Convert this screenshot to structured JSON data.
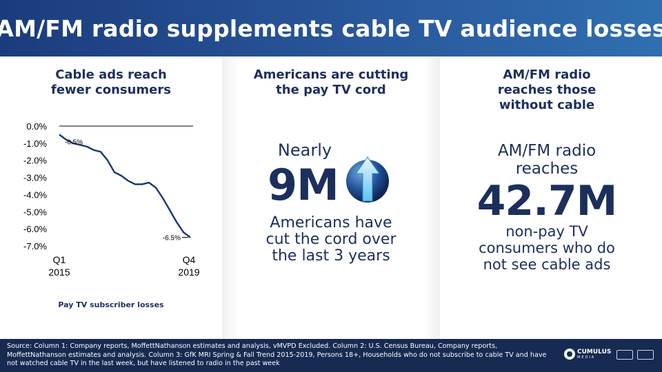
{
  "header": {
    "title": "AM/FM radio supplements cable TV audience losses"
  },
  "column1": {
    "title_line1": "Cable ads reach",
    "title_line2": "fewer consumers",
    "chart_label": "Pay TV subscriber losses"
  },
  "column2": {
    "title_line1": "Americans are cutting",
    "title_line2": "the pay TV cord",
    "nearly": "Nearly",
    "number": "9M",
    "desc_line1": "Americans have",
    "desc_line2": "cut the cord over",
    "desc_line3": "the last 3 years",
    "icon": "up-arrow-icon"
  },
  "column3": {
    "title_line1": "AM/FM radio",
    "title_line2": "reaches those",
    "title_line3": "without cable",
    "lead_line1": "AM/FM radio",
    "lead_line2": "reaches",
    "number": "42.7M",
    "desc_line1": "non-pay TV",
    "desc_line2": "consumers who do",
    "desc_line3": "not see cable ads"
  },
  "footer": {
    "source": "Source: Column 1: Company reports, MoffettNathanson estimates and analysis, vMVPD Excluded. Column 2: U.S. Census Bureau, Company reports, MoffettNathanson estimates and analysis. Column 3: GfK MRI Spring & Fall Trend 2015-2019, Persons 18+, Households who do not subscribe to cable TV and have not watched cable TV in the last week, but have listened to radio in the past week",
    "logo_name": "CUMULUS",
    "logo_sub": "MEDIA"
  },
  "colors": {
    "navy": "#1c2f5c",
    "header_blue": "#2a5a9e",
    "footer_bg": "#162a52"
  },
  "chart_data": {
    "type": "line",
    "title": "Pay TV subscriber losses",
    "y_tick_labels": [
      "0.0%",
      "-1.0%",
      "-2.0%",
      "-3.0%",
      "-4.0%",
      "-5.0%",
      "-6.0%",
      "-7.0%"
    ],
    "y_ticks": [
      0,
      -1,
      -2,
      -3,
      -4,
      -5,
      -6,
      -7
    ],
    "ylim": [
      -7,
      0
    ],
    "x_start_label": [
      "Q1",
      "2015"
    ],
    "x_end_label": [
      "Q4",
      "2019"
    ],
    "values": [
      -0.5,
      -0.8,
      -1.0,
      -1.1,
      -1.2,
      -1.4,
      -1.5,
      -2.0,
      -2.7,
      -2.9,
      -3.2,
      -3.4,
      -3.4,
      -3.3,
      -3.6,
      -4.2,
      -4.9,
      -5.6,
      -6.2,
      -6.5
    ],
    "annotations": [
      {
        "index": 0,
        "text": "-0.5%"
      },
      {
        "index": 19,
        "text": "-6.5%"
      }
    ],
    "grid": false
  }
}
